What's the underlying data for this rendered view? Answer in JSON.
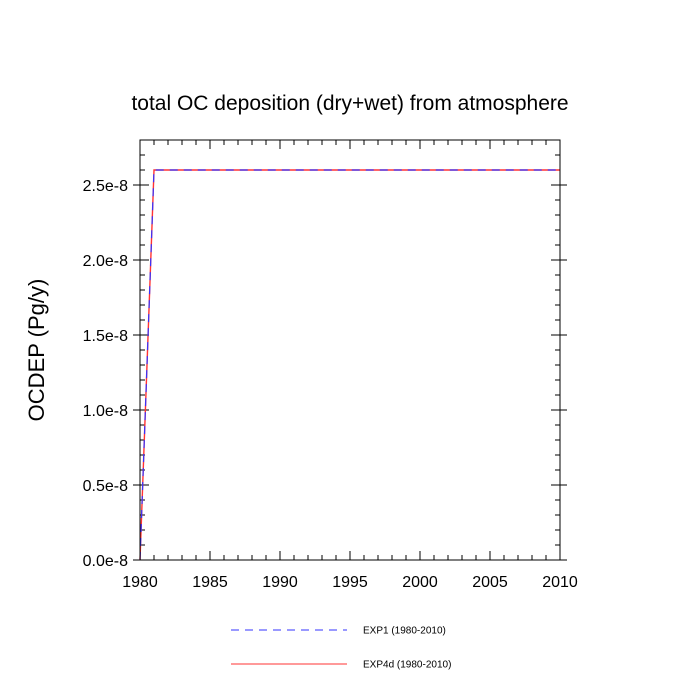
{
  "chart_data": {
    "type": "line",
    "title": "total OC deposition (dry+wet) from atmosphere",
    "xlabel": "",
    "ylabel": "OCDEP  (Pg/y)",
    "xlim": [
      1980,
      2010
    ],
    "ylim": [
      0.0,
      2.8e-08
    ],
    "x_ticks": [
      1980,
      1985,
      1990,
      1995,
      2000,
      2005,
      2010
    ],
    "x_tick_labels": [
      "1980",
      "1985",
      "1990",
      "1995",
      "2000",
      "2005",
      "2010"
    ],
    "y_ticks": [
      0.0,
      5e-09,
      1e-08,
      1.5e-08,
      2e-08,
      2.5e-08
    ],
    "y_tick_labels": [
      "0.0e-8",
      "0.5e-8",
      "1.0e-8",
      "1.5e-8",
      "2.0e-8",
      "2.5e-8"
    ],
    "x_minor_step": 1,
    "y_minor_step": 1e-09,
    "legend_location": "bottom",
    "series": [
      {
        "name": "EXP1 (1980-2010)",
        "color": "#3333ff",
        "style": "dashed",
        "x": [
          1980,
          1981,
          2010
        ],
        "values": [
          0.0,
          2.6e-08,
          2.6e-08
        ]
      },
      {
        "name": "EXP4d (1980-2010)",
        "color": "#ff3333",
        "style": "solid",
        "x": [
          1980,
          1981,
          2010
        ],
        "values": [
          0.0,
          2.6e-08,
          2.6e-08
        ]
      }
    ]
  }
}
